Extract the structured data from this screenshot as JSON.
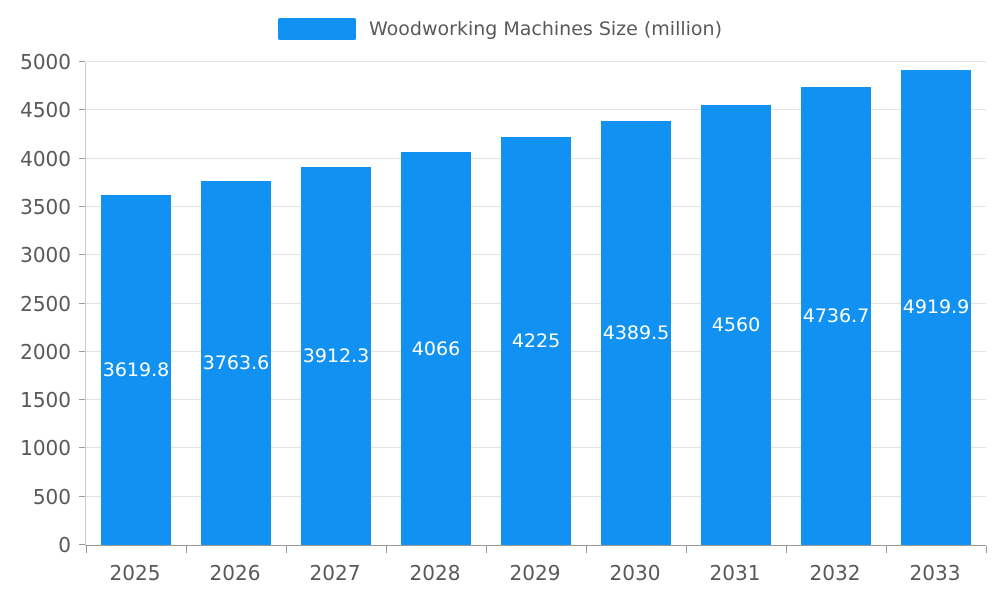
{
  "legend": {
    "label": "Woodworking Machines Size (million)"
  },
  "colors": {
    "bar": "#1191f1",
    "label_text": "#ffffff",
    "axis_text": "#595959",
    "gridline": "#e3e3e3",
    "axis_line": "#999999"
  },
  "chart_data": {
    "type": "bar",
    "title": "Woodworking Machines Size (million)",
    "categories": [
      "2025",
      "2026",
      "2027",
      "2028",
      "2029",
      "2030",
      "2031",
      "2032",
      "2033"
    ],
    "values": [
      3619.8,
      3763.6,
      3912.3,
      4066,
      4225,
      4389.5,
      4560,
      4736.7,
      4919.9
    ],
    "value_labels": [
      "3619.8",
      "3763.6",
      "3912.3",
      "4066",
      "4225",
      "4389.5",
      "4560",
      "4736.7",
      "4919.9"
    ],
    "xlabel": "",
    "ylabel": "",
    "ylim": [
      0,
      5000
    ],
    "ytick_step": 500,
    "ytick_labels": [
      "0",
      "500",
      "1000",
      "1500",
      "2000",
      "2500",
      "3000",
      "3500",
      "4000",
      "4500",
      "5000"
    ],
    "grid": true,
    "legend_position": "top",
    "value_label_position": "inside-center"
  }
}
